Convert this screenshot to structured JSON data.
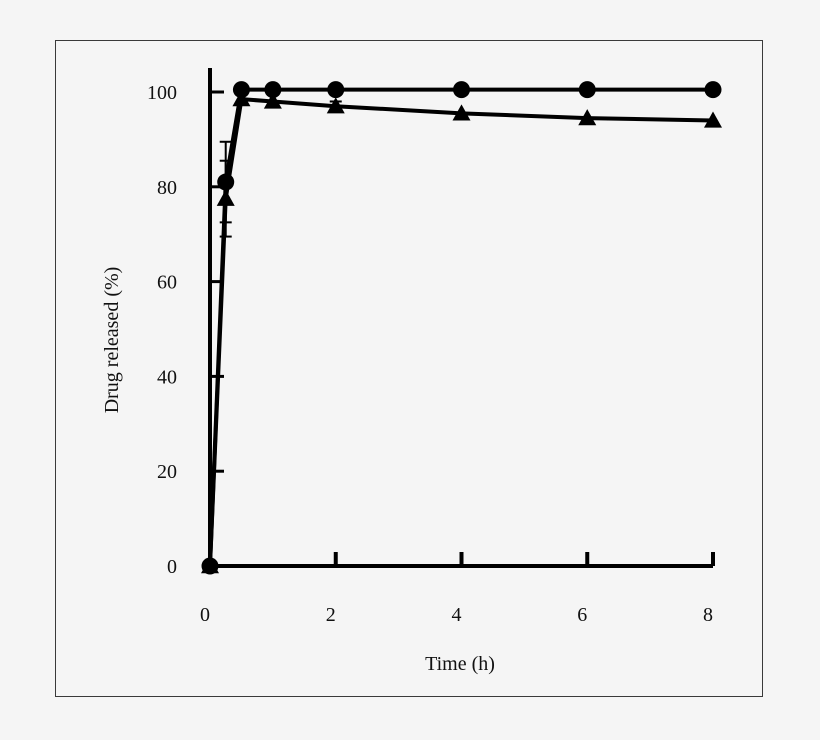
{
  "chart_data": {
    "type": "line",
    "xlabel": "Time (h)",
    "ylabel": "Drug released (%)",
    "xlim": [
      0,
      8
    ],
    "ylim": [
      0,
      100
    ],
    "x_ticks": [
      0,
      2,
      4,
      6,
      8
    ],
    "y_ticks": [
      0,
      20,
      40,
      60,
      80,
      100
    ],
    "grid": false,
    "series": [
      {
        "marker": "circle",
        "color": "#000000",
        "x": [
          0,
          0.25,
          0.5,
          1,
          2,
          4,
          6,
          8
        ],
        "y": [
          0,
          81,
          100.5,
          100.5,
          100.5,
          100.5,
          100.5,
          100.5
        ],
        "error": [
          0,
          8.5,
          0,
          0,
          0,
          0,
          0,
          0
        ]
      },
      {
        "marker": "triangle",
        "color": "#000000",
        "x": [
          0,
          0.25,
          0.5,
          1,
          2,
          4,
          6,
          8
        ],
        "y": [
          0,
          77.5,
          98.5,
          98,
          97,
          95.5,
          94.5,
          94
        ],
        "error": [
          0,
          8,
          0,
          0,
          1,
          0,
          0,
          0
        ]
      }
    ]
  }
}
